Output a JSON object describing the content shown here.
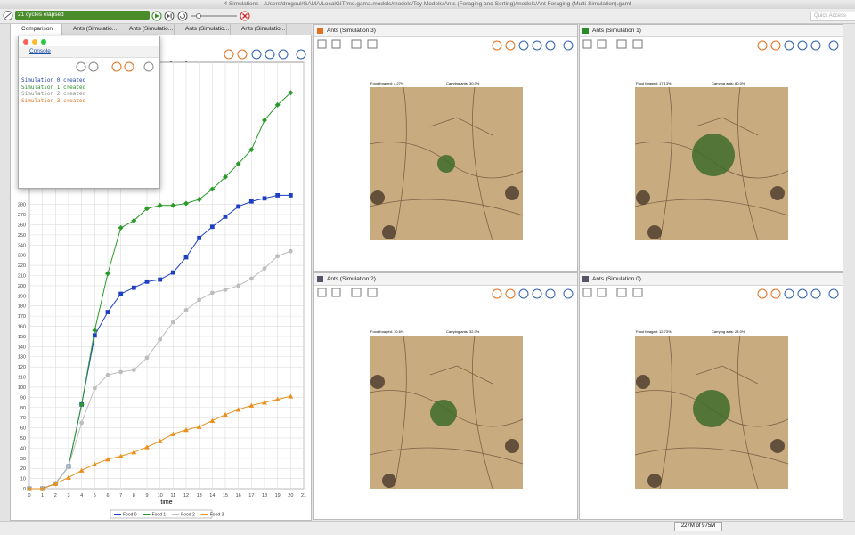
{
  "window": {
    "title": "4 Simulations - /Users/drogoul/GAMA/LocalGIT/mo.gama.models/models/Toy Models/Ants (Foraging and Sorting)/models/Ant Foraging (Multi-Simulation).gaml"
  },
  "toolbar": {
    "status": "21 cycles elapsed",
    "quick_access": "Quick Access"
  },
  "tabs": [
    "Comparison",
    "Ants (Simulatio...",
    "Ants (Simulatio...",
    "Ants (Simulatio...",
    "Ants (Simulatio..."
  ],
  "console": {
    "title": "Console",
    "lines": [
      "Simulation 0 created",
      "Simulation 1 created",
      "Simulation 2 created",
      "Simulation 3 created"
    ]
  },
  "panels": [
    {
      "title": "Ants (Simulation 3)",
      "food_foraged": "Food foraged: 4.27%",
      "carrying_ants": "Carrying ants: 30.0%"
    },
    {
      "title": "Ants (Simulation 1)",
      "food_foraged": "Food foraged: 17.13%",
      "carrying_ants": "Carrying ants: 80.0%"
    },
    {
      "title": "Ants (Simulation 2)",
      "food_foraged": "Food foraged: 10.6%",
      "carrying_ants": "Carrying ants: 32.0%"
    },
    {
      "title": "Ants (Simulation 0)",
      "food_foraged": "Food foraged: 12.73%",
      "carrying_ants": "Carrying ants: 28.0%"
    }
  ],
  "status_bar": {
    "memory": "227M of 975M"
  },
  "chart_data": {
    "type": "line",
    "title": "Gathered",
    "x_label": "time",
    "x": [
      0,
      1,
      2,
      3,
      4,
      5,
      6,
      7,
      8,
      9,
      10,
      11,
      12,
      13,
      14,
      15,
      16,
      17,
      18,
      19,
      20
    ],
    "series": [
      {
        "name": "Food 0",
        "color": "#1c3fc4",
        "marker": "square",
        "values": [
          0,
          0,
          5,
          22,
          83,
          151,
          174,
          192,
          198,
          204,
          206,
          213,
          228,
          247,
          258,
          268,
          278,
          283,
          286,
          289,
          289
        ]
      },
      {
        "name": "Food 1",
        "color": "#2a9a2a",
        "marker": "diamond",
        "values": [
          0,
          0,
          5,
          22,
          83,
          156,
          212,
          257,
          264,
          276,
          279,
          279,
          281,
          285,
          295,
          307,
          320,
          334,
          363,
          378,
          390
        ]
      },
      {
        "name": "Food 2",
        "color": "#bdbdbd",
        "marker": "circle",
        "values": [
          0,
          0,
          5,
          22,
          65,
          99,
          112,
          115,
          117,
          129,
          147,
          164,
          176,
          186,
          193,
          196,
          200,
          207,
          217,
          229,
          234
        ]
      },
      {
        "name": "Food 3",
        "color": "#e8901e",
        "marker": "triangle",
        "values": [
          0,
          0,
          5,
          11,
          18,
          24,
          29,
          32,
          36,
          41,
          47,
          54,
          58,
          61,
          67,
          73,
          78,
          82,
          85,
          88,
          91
        ]
      }
    ],
    "xlim": [
      0,
      21
    ],
    "xticks": [
      0,
      1,
      2,
      3,
      4,
      5,
      6,
      7,
      8,
      9,
      10,
      11,
      12,
      13,
      14,
      15,
      16,
      17,
      18,
      19,
      20,
      21
    ],
    "ylim": [
      0,
      420
    ],
    "yticks": [
      0,
      10,
      20,
      30,
      40,
      50,
      60,
      70,
      80,
      90,
      100,
      110,
      120,
      130,
      140,
      150,
      160,
      170,
      180,
      190,
      200,
      210,
      220,
      230,
      240,
      250,
      260,
      270,
      280
    ],
    "grid": true,
    "legend": "bottom"
  }
}
